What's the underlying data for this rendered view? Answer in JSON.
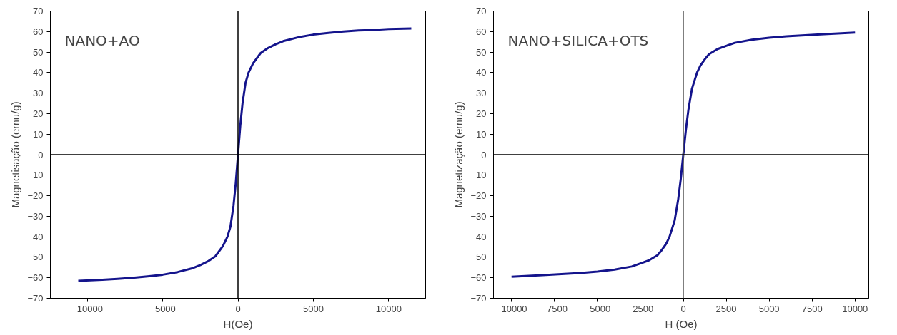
{
  "chart_data": [
    {
      "type": "line",
      "xlabel": "H(Oe)",
      "ylabel": "Magnetisação (emu/g)",
      "annotations": [
        "NANO+AO"
      ],
      "x": [
        -10600,
        -9000,
        -8000,
        -7000,
        -6000,
        -5000,
        -4000,
        -3000,
        -2500,
        -2000,
        -1500,
        -1000,
        -700,
        -500,
        -300,
        -150,
        0,
        150,
        300,
        500,
        700,
        1000,
        1500,
        2000,
        2500,
        3000,
        4000,
        5000,
        6000,
        7000,
        8000,
        9000,
        10000,
        11500
      ],
      "values": [
        -61.5,
        -61,
        -60.5,
        -60,
        -59.3,
        -58.5,
        -57.2,
        -55.3,
        -53.8,
        -52,
        -49.5,
        -44.5,
        -40,
        -35,
        -25,
        -14,
        0,
        14,
        25,
        35,
        40,
        44.5,
        49.5,
        52,
        53.8,
        55.3,
        57.2,
        58.5,
        59.3,
        60,
        60.5,
        60.8,
        61.2,
        61.5
      ],
      "color": "#14148c",
      "xlim": [
        -12450,
        12450
      ],
      "ylim": [
        -70,
        70
      ],
      "xticks": [
        -10000,
        -5000,
        0,
        5000,
        10000
      ],
      "yticks": [
        -70,
        -60,
        -50,
        -40,
        -30,
        -20,
        -10,
        0,
        10,
        20,
        30,
        40,
        50,
        60,
        70
      ],
      "ref_lines": [
        {
          "axis": "x",
          "value": 0,
          "color": "#000000"
        },
        {
          "axis": "y",
          "value": 0,
          "color": "#000000"
        }
      ]
    },
    {
      "type": "line",
      "xlabel": "H (Oe)",
      "ylabel": "Magnetização (emu/g)",
      "annotations": [
        "NANO+SILICA+OTS"
      ],
      "x": [
        -10000,
        -8000,
        -6000,
        -5000,
        -4000,
        -3000,
        -2500,
        -2000,
        -1500,
        -1300,
        -1000,
        -800,
        -500,
        -300,
        -150,
        0,
        150,
        300,
        500,
        800,
        1000,
        1300,
        1500,
        2000,
        2500,
        3000,
        4000,
        5000,
        6000,
        8000,
        10000
      ],
      "values": [
        -59.5,
        -58.6,
        -57.7,
        -57,
        -56,
        -54.5,
        -53,
        -51.5,
        -49,
        -47,
        -43.5,
        -40,
        -32,
        -22,
        -12,
        0,
        12,
        22,
        32,
        40,
        43.5,
        47,
        49,
        51.5,
        53,
        54.5,
        56,
        57,
        57.7,
        58.6,
        59.5
      ],
      "color": "#14148c",
      "xlim": [
        -11050,
        10800
      ],
      "ylim": [
        -70,
        70
      ],
      "xticks": [
        -10000,
        -7500,
        -5000,
        -2500,
        0,
        2500,
        5000,
        7500,
        10000
      ],
      "yticks": [
        -70,
        -60,
        -50,
        -40,
        -30,
        -20,
        -10,
        0,
        10,
        20,
        30,
        40,
        50,
        60,
        70
      ],
      "ref_lines": [
        {
          "axis": "x",
          "value": 0,
          "color": "#555555"
        },
        {
          "axis": "y",
          "value": 0,
          "color": "#000000"
        }
      ]
    }
  ]
}
